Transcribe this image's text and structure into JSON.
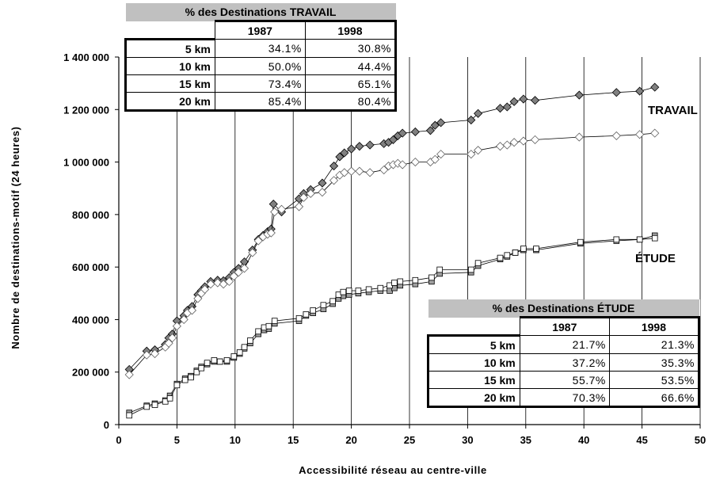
{
  "chart_data": {
    "type": "line",
    "xlabel": "Accessibilité réseau au centre-ville",
    "ylabel": "Nombre de destinations-motif (24 heures)",
    "xlim": [
      0,
      50
    ],
    "ylim": [
      0,
      1400000
    ],
    "x_ticks": [
      "0",
      "5",
      "10",
      "15",
      "20",
      "25",
      "30",
      "35",
      "40",
      "45",
      "50"
    ],
    "y_ticks": [
      "0",
      "200 000",
      "400 000",
      "600 000",
      "800 000",
      "1 000 000",
      "1 200 000",
      "1 400 000"
    ],
    "grid": "vertical",
    "series_labels": {
      "travail": "TRAVAIL",
      "etude": "ÉTUDE"
    },
    "series": [
      {
        "group": "TRAVAIL",
        "year_marker": "filled-diamond",
        "color": "#808080",
        "points": [
          [
            0.9,
            210000
          ],
          [
            2.4,
            280000
          ],
          [
            3.1,
            285000
          ],
          [
            4.0,
            305000
          ],
          [
            4.3,
            330000
          ],
          [
            4.6,
            345000
          ],
          [
            5.0,
            395000
          ],
          [
            5.6,
            415000
          ],
          [
            5.9,
            435000
          ],
          [
            6.3,
            450000
          ],
          [
            6.8,
            495000
          ],
          [
            7.1,
            510000
          ],
          [
            7.4,
            525000
          ],
          [
            7.9,
            545000
          ],
          [
            8.5,
            550000
          ],
          [
            9.0,
            548000
          ],
          [
            9.5,
            560000
          ],
          [
            9.9,
            580000
          ],
          [
            10.3,
            595000
          ],
          [
            10.8,
            620000
          ],
          [
            11.5,
            665000
          ],
          [
            12.0,
            705000
          ],
          [
            12.4,
            720000
          ],
          [
            12.8,
            735000
          ],
          [
            13.1,
            745000
          ],
          [
            13.3,
            840000
          ],
          [
            14.0,
            810000
          ],
          [
            15.5,
            860000
          ],
          [
            15.9,
            880000
          ],
          [
            16.5,
            895000
          ],
          [
            17.5,
            920000
          ],
          [
            18.5,
            985000
          ],
          [
            19.0,
            1020000
          ],
          [
            19.4,
            1035000
          ],
          [
            20.0,
            1050000
          ],
          [
            20.7,
            1060000
          ],
          [
            21.6,
            1065000
          ],
          [
            22.8,
            1070000
          ],
          [
            23.2,
            1075000
          ],
          [
            23.6,
            1085000
          ],
          [
            24.0,
            1100000
          ],
          [
            24.4,
            1110000
          ],
          [
            25.5,
            1115000
          ],
          [
            26.8,
            1120000
          ],
          [
            27.2,
            1140000
          ],
          [
            27.7,
            1150000
          ],
          [
            30.3,
            1160000
          ],
          [
            30.9,
            1185000
          ],
          [
            32.8,
            1205000
          ],
          [
            33.4,
            1210000
          ],
          [
            34.0,
            1230000
          ],
          [
            34.8,
            1240000
          ],
          [
            35.8,
            1235000
          ],
          [
            39.6,
            1255000
          ],
          [
            42.8,
            1265000
          ],
          [
            44.8,
            1270000
          ],
          [
            46.1,
            1285000
          ]
        ]
      },
      {
        "group": "TRAVAIL",
        "year_marker": "open-diamond",
        "color": "#808080",
        "points": [
          [
            0.9,
            190000
          ],
          [
            2.4,
            265000
          ],
          [
            3.1,
            270000
          ],
          [
            4.0,
            295000
          ],
          [
            4.3,
            310000
          ],
          [
            4.6,
            330000
          ],
          [
            5.0,
            375000
          ],
          [
            5.6,
            400000
          ],
          [
            5.9,
            425000
          ],
          [
            6.3,
            435000
          ],
          [
            6.8,
            480000
          ],
          [
            7.1,
            500000
          ],
          [
            7.4,
            515000
          ],
          [
            7.9,
            535000
          ],
          [
            8.5,
            540000
          ],
          [
            9.0,
            535000
          ],
          [
            9.5,
            545000
          ],
          [
            9.9,
            565000
          ],
          [
            10.3,
            580000
          ],
          [
            10.8,
            595000
          ],
          [
            11.5,
            655000
          ],
          [
            12.0,
            700000
          ],
          [
            12.4,
            715000
          ],
          [
            12.8,
            725000
          ],
          [
            13.1,
            730000
          ],
          [
            13.4,
            810000
          ],
          [
            14.0,
            820000
          ],
          [
            15.5,
            830000
          ],
          [
            15.9,
            865000
          ],
          [
            16.5,
            880000
          ],
          [
            17.5,
            885000
          ],
          [
            18.5,
            930000
          ],
          [
            19.0,
            950000
          ],
          [
            19.4,
            960000
          ],
          [
            20.0,
            965000
          ],
          [
            20.7,
            965000
          ],
          [
            21.6,
            960000
          ],
          [
            22.8,
            970000
          ],
          [
            23.2,
            985000
          ],
          [
            23.6,
            990000
          ],
          [
            24.0,
            995000
          ],
          [
            24.4,
            990000
          ],
          [
            25.5,
            1000000
          ],
          [
            26.8,
            1000000
          ],
          [
            27.2,
            1010000
          ],
          [
            27.7,
            1030000
          ],
          [
            30.3,
            1030000
          ],
          [
            30.9,
            1045000
          ],
          [
            32.8,
            1060000
          ],
          [
            33.4,
            1065000
          ],
          [
            34.0,
            1075000
          ],
          [
            34.8,
            1080000
          ],
          [
            35.8,
            1085000
          ],
          [
            39.6,
            1095000
          ],
          [
            42.8,
            1100000
          ],
          [
            44.8,
            1105000
          ],
          [
            46.1,
            1110000
          ]
        ]
      },
      {
        "group": "ÉTUDE",
        "year_marker": "filled-square",
        "color": "#a0a0a0",
        "points": [
          [
            0.9,
            45000
          ],
          [
            2.4,
            72000
          ],
          [
            3.1,
            80000
          ],
          [
            4.0,
            92000
          ],
          [
            4.4,
            110000
          ],
          [
            5.0,
            155000
          ],
          [
            5.7,
            175000
          ],
          [
            6.2,
            185000
          ],
          [
            6.7,
            205000
          ],
          [
            7.1,
            220000
          ],
          [
            7.6,
            230000
          ],
          [
            8.2,
            240000
          ],
          [
            8.7,
            240000
          ],
          [
            9.3,
            240000
          ],
          [
            9.9,
            255000
          ],
          [
            10.4,
            270000
          ],
          [
            10.8,
            290000
          ],
          [
            11.3,
            310000
          ],
          [
            12.0,
            345000
          ],
          [
            12.5,
            360000
          ],
          [
            12.9,
            365000
          ],
          [
            13.4,
            385000
          ],
          [
            15.5,
            395000
          ],
          [
            16.1,
            415000
          ],
          [
            16.7,
            425000
          ],
          [
            17.6,
            440000
          ],
          [
            18.4,
            460000
          ],
          [
            18.9,
            480000
          ],
          [
            19.3,
            490000
          ],
          [
            19.8,
            495000
          ],
          [
            20.6,
            500000
          ],
          [
            21.5,
            505000
          ],
          [
            22.5,
            510000
          ],
          [
            23.3,
            510000
          ],
          [
            23.7,
            520000
          ],
          [
            24.2,
            530000
          ],
          [
            25.5,
            535000
          ],
          [
            26.9,
            545000
          ],
          [
            27.6,
            575000
          ],
          [
            30.3,
            580000
          ],
          [
            30.9,
            605000
          ],
          [
            32.8,
            630000
          ],
          [
            33.4,
            640000
          ],
          [
            34.1,
            655000
          ],
          [
            34.8,
            665000
          ],
          [
            35.9,
            665000
          ],
          [
            39.7,
            690000
          ],
          [
            42.8,
            700000
          ],
          [
            44.8,
            705000
          ],
          [
            46.1,
            720000
          ]
        ]
      },
      {
        "group": "ÉTUDE",
        "year_marker": "open-square",
        "color": "#a0a0a0",
        "points": [
          [
            0.9,
            35000
          ],
          [
            2.4,
            68000
          ],
          [
            3.1,
            75000
          ],
          [
            4.0,
            88000
          ],
          [
            4.4,
            100000
          ],
          [
            5.0,
            150000
          ],
          [
            5.7,
            170000
          ],
          [
            6.2,
            180000
          ],
          [
            6.7,
            200000
          ],
          [
            7.1,
            215000
          ],
          [
            7.6,
            235000
          ],
          [
            8.2,
            245000
          ],
          [
            8.7,
            240000
          ],
          [
            9.3,
            245000
          ],
          [
            9.9,
            260000
          ],
          [
            10.4,
            275000
          ],
          [
            10.8,
            295000
          ],
          [
            11.3,
            320000
          ],
          [
            12.0,
            355000
          ],
          [
            12.5,
            370000
          ],
          [
            12.9,
            375000
          ],
          [
            13.4,
            395000
          ],
          [
            15.5,
            405000
          ],
          [
            16.1,
            420000
          ],
          [
            16.7,
            435000
          ],
          [
            17.6,
            455000
          ],
          [
            18.4,
            470000
          ],
          [
            18.9,
            495000
          ],
          [
            19.3,
            505000
          ],
          [
            19.8,
            510000
          ],
          [
            20.6,
            510000
          ],
          [
            21.5,
            515000
          ],
          [
            22.5,
            520000
          ],
          [
            23.3,
            530000
          ],
          [
            23.7,
            540000
          ],
          [
            24.2,
            545000
          ],
          [
            25.5,
            550000
          ],
          [
            26.9,
            560000
          ],
          [
            27.6,
            590000
          ],
          [
            30.3,
            590000
          ],
          [
            30.9,
            615000
          ],
          [
            32.8,
            635000
          ],
          [
            33.4,
            645000
          ],
          [
            34.1,
            655000
          ],
          [
            34.8,
            670000
          ],
          [
            35.9,
            670000
          ],
          [
            39.7,
            695000
          ],
          [
            42.8,
            705000
          ],
          [
            44.8,
            705000
          ],
          [
            46.1,
            710000
          ]
        ]
      }
    ]
  },
  "tables": {
    "travail": {
      "title": "% des Destinations TRAVAIL",
      "years": [
        "1987",
        "1998"
      ],
      "rows": [
        {
          "label": "5 km",
          "v1987": "34.1%",
          "v1998": "30.8%"
        },
        {
          "label": "10 km",
          "v1987": "50.0%",
          "v1998": "44.4%"
        },
        {
          "label": "15 km",
          "v1987": "73.4%",
          "v1998": "65.1%"
        },
        {
          "label": "20 km",
          "v1987": "85.4%",
          "v1998": "80.4%"
        }
      ]
    },
    "etude": {
      "title": "% des Destinations ÉTUDE",
      "years": [
        "1987",
        "1998"
      ],
      "rows": [
        {
          "label": "5 km",
          "v1987": "21.7%",
          "v1998": "21.3%"
        },
        {
          "label": "10 km",
          "v1987": "37.2%",
          "v1998": "35.3%"
        },
        {
          "label": "15 km",
          "v1987": "55.7%",
          "v1998": "53.5%"
        },
        {
          "label": "20 km",
          "v1987": "70.3%",
          "v1998": "66.6%"
        }
      ]
    }
  }
}
